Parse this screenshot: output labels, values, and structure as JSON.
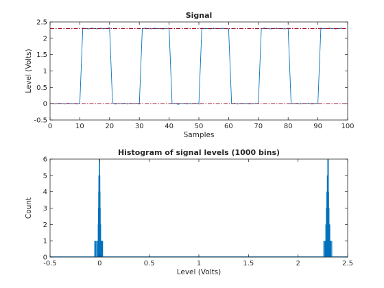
{
  "chart_data": [
    {
      "type": "line",
      "title": "Signal",
      "xlabel": "Samples",
      "ylabel": "Level (Volts)",
      "xlim": [
        0,
        100
      ],
      "ylim": [
        -0.5,
        2.5
      ],
      "xticks": [
        "0",
        "10",
        "20",
        "30",
        "40",
        "50",
        "60",
        "70",
        "80",
        "90",
        "100"
      ],
      "yticks": [
        "-0.5",
        "0",
        "0.5",
        "1",
        "1.5",
        "2",
        "2.5"
      ],
      "grid": false,
      "series": [
        {
          "color": "#0072bd",
          "x": [
            1,
            2,
            3,
            4,
            5,
            6,
            7,
            8,
            9,
            10,
            11,
            12,
            13,
            14,
            15,
            16,
            17,
            18,
            19,
            20,
            21,
            22,
            23,
            24,
            25,
            26,
            27,
            28,
            29,
            30,
            31,
            32,
            33,
            34,
            35,
            36,
            37,
            38,
            39,
            40,
            41,
            42,
            43,
            44,
            45,
            46,
            47,
            48,
            49,
            50,
            51,
            52,
            53,
            54,
            55,
            56,
            57,
            58,
            59,
            60,
            61,
            62,
            63,
            64,
            65,
            66,
            67,
            68,
            69,
            70,
            71,
            72,
            73,
            74,
            75,
            76,
            77,
            78,
            79,
            80,
            81,
            82,
            83,
            84,
            85,
            86,
            87,
            88,
            89,
            90,
            91,
            92,
            93,
            94,
            95,
            96,
            97,
            98
          ],
          "y": [
            0.0,
            -0.01,
            0.01,
            0.0,
            -0.01,
            0.01,
            0.0,
            0.0,
            -0.01,
            0.01,
            2.31,
            2.3,
            2.29,
            2.31,
            2.3,
            2.29,
            2.31,
            2.3,
            2.3,
            2.32,
            0.01,
            -0.01,
            0.0,
            0.0,
            0.01,
            -0.01,
            0.0,
            0.0,
            0.01,
            -0.01,
            2.3,
            2.31,
            2.3,
            2.29,
            2.31,
            2.3,
            2.3,
            2.29,
            2.3,
            2.31,
            0.0,
            0.01,
            -0.02,
            0.0,
            0.01,
            -0.01,
            0.0,
            0.0,
            0.01,
            -0.01,
            2.31,
            2.3,
            2.3,
            2.29,
            2.31,
            2.3,
            2.3,
            2.31,
            2.3,
            2.29,
            0.0,
            0.01,
            -0.01,
            0.0,
            0.01,
            0.0,
            -0.01,
            0.0,
            0.0,
            0.01,
            2.3,
            2.31,
            2.3,
            2.29,
            2.3,
            2.31,
            2.3,
            2.3,
            2.29,
            2.31,
            0.0,
            0.0,
            0.01,
            -0.01,
            0.0,
            0.0,
            0.01,
            -0.01,
            0.0,
            0.0,
            2.31,
            2.3,
            2.3,
            2.31,
            2.3,
            2.29,
            2.3,
            2.31
          ]
        }
      ],
      "reference_lines": [
        {
          "y": 2.3,
          "color": "#a2142f",
          "style": "dash-dot"
        },
        {
          "y": 0.0,
          "color": "#a2142f",
          "style": "dash-dot"
        }
      ]
    },
    {
      "type": "bar",
      "title": "Histogram of signal levels (1000 bins)",
      "xlabel": "Level (Volts)",
      "ylabel": "Count",
      "xlim": [
        -0.5,
        2.5
      ],
      "ylim": [
        0,
        6
      ],
      "xticks": [
        "-0.5",
        "0",
        "0.5",
        "1",
        "1.5",
        "2",
        "2.5"
      ],
      "yticks": [
        "0",
        "1",
        "2",
        "3",
        "4",
        "5",
        "6"
      ],
      "grid": false,
      "series": [
        {
          "color": "#0072bd",
          "x": [
            -0.05,
            -0.04,
            -0.03,
            -0.02,
            -0.015,
            -0.012,
            -0.01,
            -0.008,
            -0.006,
            -0.004,
            -0.002,
            0.0,
            0.002,
            0.004,
            0.006,
            0.008,
            0.01,
            0.012,
            0.015,
            0.02,
            0.025,
            0.03,
            2.26,
            2.27,
            2.275,
            2.28,
            2.285,
            2.29,
            2.292,
            2.295,
            2.298,
            2.3,
            2.302,
            2.305,
            2.308,
            2.31,
            2.312,
            2.315,
            2.32,
            2.325,
            2.33,
            2.34
          ],
          "counts": [
            1,
            1,
            1,
            1,
            2,
            3,
            4,
            5,
            3,
            4,
            6,
            6,
            5,
            4,
            3,
            2,
            2,
            1,
            1,
            1,
            1,
            1,
            1,
            1,
            1,
            2,
            3,
            4,
            4,
            5,
            5,
            6,
            5,
            6,
            4,
            3,
            3,
            2,
            2,
            1,
            1,
            1
          ]
        }
      ]
    }
  ]
}
